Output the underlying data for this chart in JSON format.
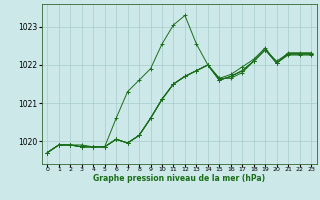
{
  "title": "Graphe pression niveau de la mer (hPa)",
  "bg_color": "#cce8e8",
  "line_color": "#1a6e1a",
  "grid_color": "#a8cccc",
  "xlim": [
    -0.5,
    23.5
  ],
  "ylim": [
    1019.4,
    1023.6
  ],
  "yticks": [
    1020,
    1021,
    1022,
    1023
  ],
  "xtick_labels": [
    "0",
    "1",
    "2",
    "3",
    "4",
    "5",
    "6",
    "7",
    "8",
    "9",
    "10",
    "11",
    "12",
    "13",
    "14",
    "15",
    "16",
    "17",
    "18",
    "19",
    "20",
    "21",
    "22",
    "23"
  ],
  "series": [
    [
      1019.7,
      1019.9,
      1019.9,
      1019.9,
      1019.85,
      1019.85,
      1020.6,
      1021.3,
      1021.6,
      1021.9,
      1022.55,
      1023.05,
      1023.3,
      1022.55,
      1022.0,
      1021.65,
      1021.65,
      1021.8,
      1022.1,
      1022.4,
      1022.1,
      1022.3,
      1022.3,
      1022.3
    ],
    [
      1019.7,
      1019.9,
      1019.9,
      1019.85,
      1019.85,
      1019.85,
      1020.05,
      1019.95,
      1020.15,
      1020.6,
      1021.1,
      1021.5,
      1021.7,
      1021.85,
      1022.0,
      1021.6,
      1021.7,
      1021.85,
      1022.1,
      1022.4,
      1022.05,
      1022.3,
      1022.3,
      1022.3
    ],
    [
      1019.7,
      1019.9,
      1019.9,
      1019.85,
      1019.85,
      1019.85,
      1020.05,
      1019.95,
      1020.15,
      1020.6,
      1021.1,
      1021.5,
      1021.7,
      1021.85,
      1022.0,
      1021.65,
      1021.75,
      1021.95,
      1022.15,
      1022.45,
      1022.05,
      1022.32,
      1022.32,
      1022.32
    ],
    [
      1019.7,
      1019.9,
      1019.9,
      1019.85,
      1019.85,
      1019.85,
      1020.05,
      1019.95,
      1020.15,
      1020.6,
      1021.1,
      1021.5,
      1021.7,
      1021.85,
      1022.0,
      1021.6,
      1021.7,
      1021.85,
      1022.1,
      1022.4,
      1022.05,
      1022.28,
      1022.28,
      1022.28
    ],
    [
      1019.7,
      1019.9,
      1019.9,
      1019.85,
      1019.85,
      1019.85,
      1020.05,
      1019.95,
      1020.15,
      1020.6,
      1021.1,
      1021.5,
      1021.7,
      1021.85,
      1022.0,
      1021.6,
      1021.7,
      1021.85,
      1022.1,
      1022.4,
      1022.05,
      1022.26,
      1022.26,
      1022.26
    ]
  ]
}
